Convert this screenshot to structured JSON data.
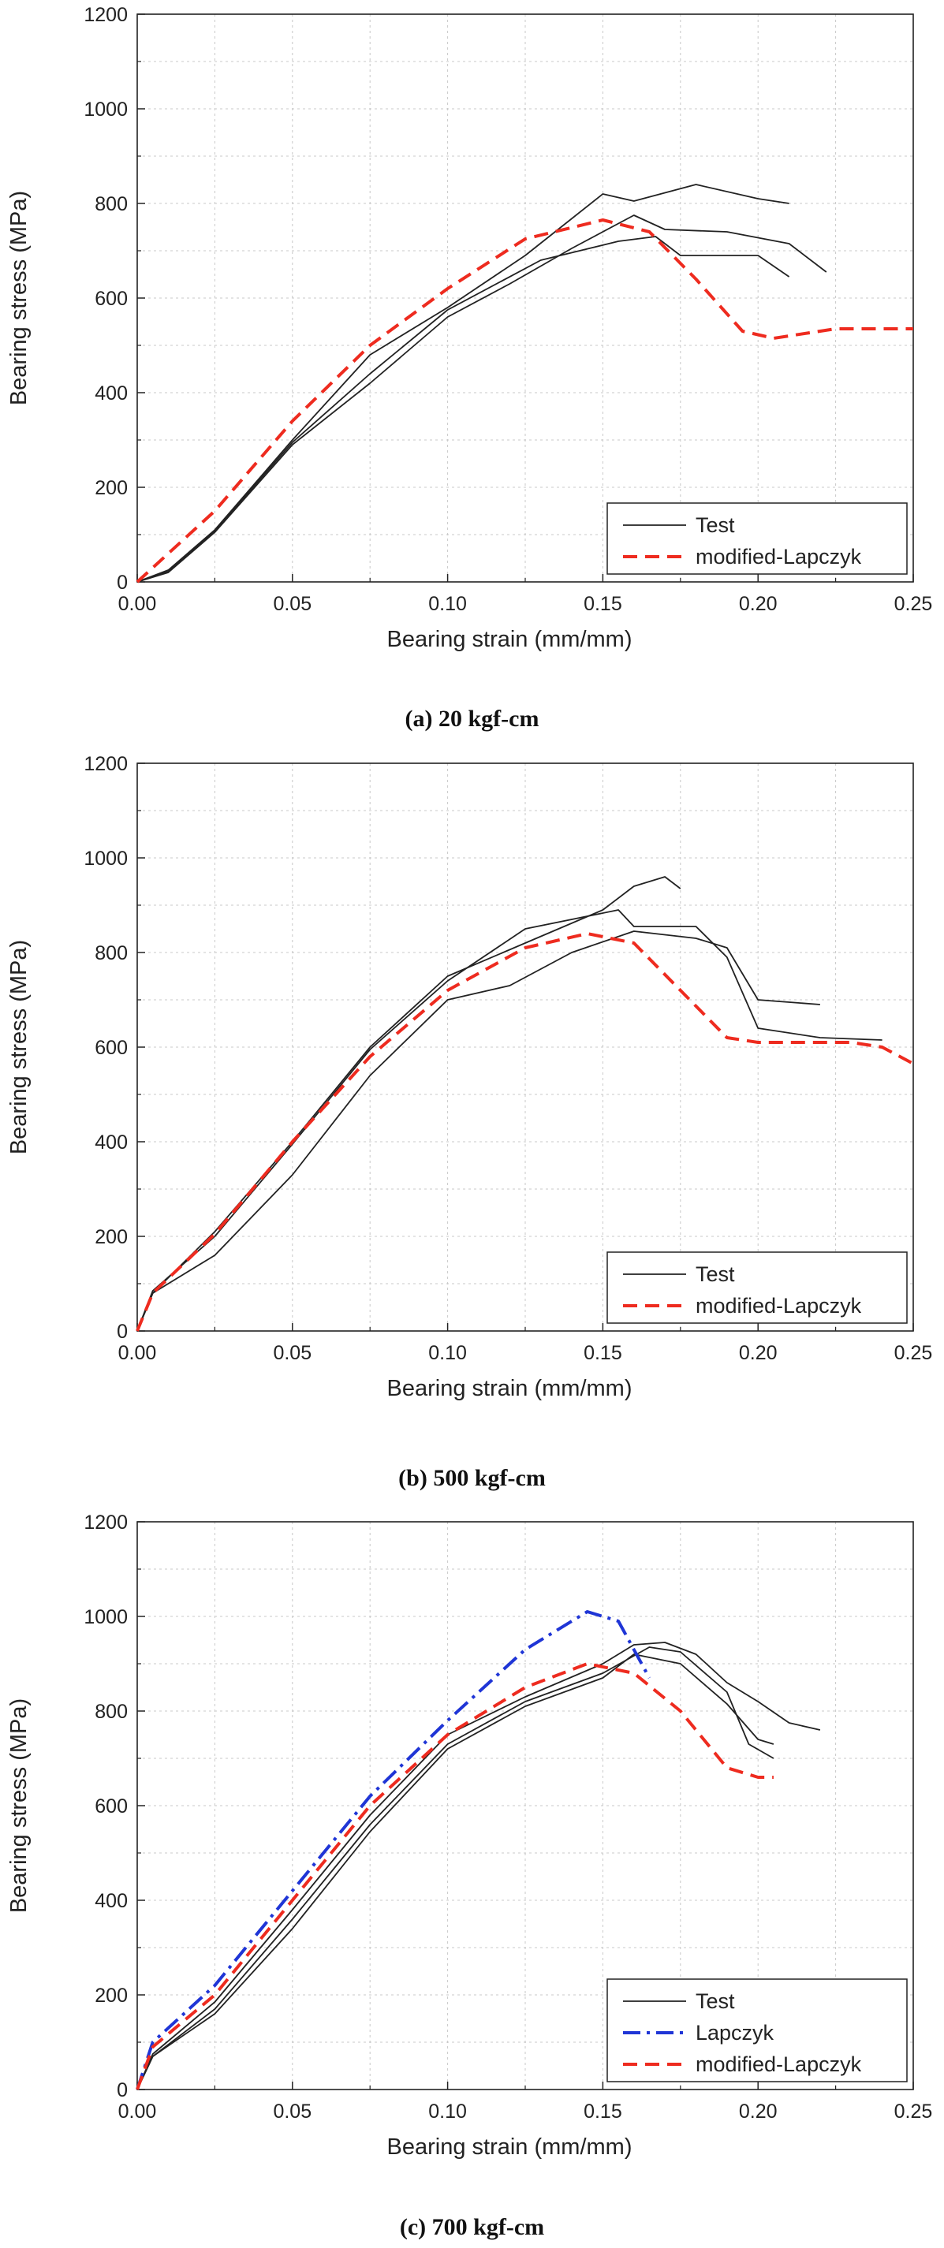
{
  "colors": {
    "test": "#222222",
    "lapczyk": "#1f35d6",
    "modified": "#ee2b1f",
    "grid": "#c8c8c8",
    "frame": "#222222"
  },
  "chart_data": [
    {
      "type": "line",
      "caption": "(a) 20 kgf-cm",
      "xlabel": "Bearing strain (mm/mm)",
      "ylabel": "Bearing stress (MPa)",
      "xlim": [
        0,
        0.25
      ],
      "ylim": [
        0,
        1200
      ],
      "x_ticks": [
        "0.00",
        "0.05",
        "0.10",
        "0.15",
        "0.20",
        "0.25"
      ],
      "y_ticks": [
        "0",
        "200",
        "400",
        "600",
        "800",
        "1000",
        "1200"
      ],
      "grid": true,
      "legend_position": "bottom-right",
      "legend": [
        "Test",
        "modified-Lapczyk"
      ],
      "series": [
        {
          "name": "Test",
          "style": "test",
          "points": [
            [
              0,
              0
            ],
            [
              0.01,
              25
            ],
            [
              0.025,
              110
            ],
            [
              0.05,
              300
            ],
            [
              0.075,
              480
            ],
            [
              0.1,
              580
            ],
            [
              0.125,
              690
            ],
            [
              0.15,
              820
            ],
            [
              0.16,
              805
            ],
            [
              0.18,
              840
            ],
            [
              0.2,
              810
            ],
            [
              0.21,
              800
            ]
          ]
        },
        {
          "name": "Test",
          "style": "test",
          "points": [
            [
              0,
              0
            ],
            [
              0.01,
              20
            ],
            [
              0.025,
              105
            ],
            [
              0.05,
              290
            ],
            [
              0.075,
              420
            ],
            [
              0.1,
              560
            ],
            [
              0.12,
              630
            ],
            [
              0.14,
              705
            ],
            [
              0.16,
              775
            ],
            [
              0.17,
              745
            ],
            [
              0.19,
              740
            ],
            [
              0.21,
              715
            ],
            [
              0.222,
              655
            ]
          ]
        },
        {
          "name": "Test",
          "style": "test",
          "points": [
            [
              0,
              0
            ],
            [
              0.01,
              22
            ],
            [
              0.025,
              108
            ],
            [
              0.05,
              295
            ],
            [
              0.075,
              440
            ],
            [
              0.1,
              575
            ],
            [
              0.13,
              680
            ],
            [
              0.155,
              720
            ],
            [
              0.167,
              730
            ],
            [
              0.175,
              690
            ],
            [
              0.2,
              690
            ],
            [
              0.21,
              645
            ]
          ]
        },
        {
          "name": "modified-Lapczyk",
          "style": "modified",
          "points": [
            [
              0,
              0
            ],
            [
              0.025,
              150
            ],
            [
              0.05,
              340
            ],
            [
              0.075,
              500
            ],
            [
              0.1,
              620
            ],
            [
              0.125,
              725
            ],
            [
              0.15,
              765
            ],
            [
              0.165,
              740
            ],
            [
              0.18,
              640
            ],
            [
              0.195,
              530
            ],
            [
              0.205,
              515
            ],
            [
              0.225,
              535
            ],
            [
              0.25,
              535
            ]
          ]
        }
      ]
    },
    {
      "type": "line",
      "caption": "(b) 500 kgf-cm",
      "xlabel": "Bearing strain (mm/mm)",
      "ylabel": "Bearing stress (MPa)",
      "xlim": [
        0,
        0.25
      ],
      "ylim": [
        0,
        1200
      ],
      "x_ticks": [
        "0.00",
        "0.05",
        "0.10",
        "0.15",
        "0.20",
        "0.25"
      ],
      "y_ticks": [
        "0",
        "200",
        "400",
        "600",
        "800",
        "1000",
        "1200"
      ],
      "grid": true,
      "legend_position": "bottom-right",
      "legend": [
        "Test",
        "modified-Lapczyk"
      ],
      "series": [
        {
          "name": "Test",
          "style": "test",
          "points": [
            [
              0,
              0
            ],
            [
              0.005,
              80
            ],
            [
              0.025,
              210
            ],
            [
              0.05,
              400
            ],
            [
              0.075,
              600
            ],
            [
              0.1,
              750
            ],
            [
              0.125,
              820
            ],
            [
              0.15,
              890
            ],
            [
              0.16,
              940
            ],
            [
              0.17,
              960
            ],
            [
              0.175,
              935
            ]
          ]
        },
        {
          "name": "Test",
          "style": "test",
          "points": [
            [
              0,
              0
            ],
            [
              0.005,
              85
            ],
            [
              0.025,
              200
            ],
            [
              0.05,
              395
            ],
            [
              0.075,
              595
            ],
            [
              0.1,
              740
            ],
            [
              0.125,
              850
            ],
            [
              0.155,
              890
            ],
            [
              0.16,
              855
            ],
            [
              0.18,
              855
            ],
            [
              0.19,
              790
            ],
            [
              0.2,
              640
            ],
            [
              0.22,
              620
            ],
            [
              0.24,
              615
            ]
          ]
        },
        {
          "name": "Test",
          "style": "test",
          "points": [
            [
              0,
              0
            ],
            [
              0.005,
              80
            ],
            [
              0.025,
              160
            ],
            [
              0.05,
              330
            ],
            [
              0.075,
              540
            ],
            [
              0.1,
              700
            ],
            [
              0.12,
              730
            ],
            [
              0.14,
              800
            ],
            [
              0.16,
              845
            ],
            [
              0.18,
              830
            ],
            [
              0.19,
              810
            ],
            [
              0.2,
              700
            ],
            [
              0.22,
              690
            ]
          ]
        },
        {
          "name": "modified-Lapczyk",
          "style": "modified",
          "points": [
            [
              0,
              0
            ],
            [
              0.005,
              80
            ],
            [
              0.025,
              205
            ],
            [
              0.05,
              400
            ],
            [
              0.075,
              580
            ],
            [
              0.1,
              720
            ],
            [
              0.125,
              810
            ],
            [
              0.145,
              840
            ],
            [
              0.16,
              820
            ],
            [
              0.175,
              720
            ],
            [
              0.19,
              620
            ],
            [
              0.2,
              610
            ],
            [
              0.23,
              610
            ],
            [
              0.24,
              600
            ],
            [
              0.25,
              565
            ]
          ]
        }
      ]
    },
    {
      "type": "line",
      "caption": "(c) 700 kgf-cm",
      "xlabel": "Bearing strain (mm/mm)",
      "ylabel": "Bearing stress (MPa)",
      "xlim": [
        0,
        0.25
      ],
      "ylim": [
        0,
        1200
      ],
      "x_ticks": [
        "0.00",
        "0.05",
        "0.10",
        "0.15",
        "0.20",
        "0.25"
      ],
      "y_ticks": [
        "0",
        "200",
        "400",
        "600",
        "800",
        "1000",
        "1200"
      ],
      "grid": true,
      "legend_position": "bottom-right",
      "legend": [
        "Test",
        "Lapczyk",
        "modified-Lapczyk"
      ],
      "series": [
        {
          "name": "Test",
          "style": "test",
          "points": [
            [
              0,
              0
            ],
            [
              0.005,
              70
            ],
            [
              0.025,
              170
            ],
            [
              0.05,
              360
            ],
            [
              0.075,
              560
            ],
            [
              0.1,
              730
            ],
            [
              0.125,
              820
            ],
            [
              0.15,
              880
            ],
            [
              0.165,
              935
            ],
            [
              0.175,
              925
            ],
            [
              0.19,
              840
            ],
            [
              0.197,
              730
            ],
            [
              0.205,
              700
            ]
          ]
        },
        {
          "name": "Test",
          "style": "test",
          "points": [
            [
              0,
              0
            ],
            [
              0.005,
              75
            ],
            [
              0.025,
              185
            ],
            [
              0.05,
              380
            ],
            [
              0.075,
              580
            ],
            [
              0.1,
              750
            ],
            [
              0.125,
              830
            ],
            [
              0.15,
              900
            ],
            [
              0.16,
              940
            ],
            [
              0.17,
              945
            ],
            [
              0.18,
              920
            ],
            [
              0.19,
              860
            ],
            [
              0.2,
              820
            ],
            [
              0.21,
              775
            ],
            [
              0.22,
              760
            ]
          ]
        },
        {
          "name": "Test",
          "style": "test",
          "points": [
            [
              0,
              0
            ],
            [
              0.005,
              70
            ],
            [
              0.025,
              160
            ],
            [
              0.05,
              340
            ],
            [
              0.075,
              545
            ],
            [
              0.1,
              720
            ],
            [
              0.125,
              810
            ],
            [
              0.15,
              870
            ],
            [
              0.16,
              920
            ],
            [
              0.175,
              900
            ],
            [
              0.19,
              815
            ],
            [
              0.2,
              740
            ],
            [
              0.205,
              730
            ]
          ]
        },
        {
          "name": "Lapczyk",
          "style": "lapczyk",
          "points": [
            [
              0,
              0
            ],
            [
              0.005,
              100
            ],
            [
              0.025,
              220
            ],
            [
              0.05,
              420
            ],
            [
              0.075,
              620
            ],
            [
              0.1,
              780
            ],
            [
              0.125,
              930
            ],
            [
              0.145,
              1010
            ],
            [
              0.155,
              990
            ],
            [
              0.165,
              870
            ]
          ]
        },
        {
          "name": "modified-Lapczyk",
          "style": "modified",
          "points": [
            [
              0,
              0
            ],
            [
              0.005,
              90
            ],
            [
              0.025,
              200
            ],
            [
              0.05,
              400
            ],
            [
              0.075,
              600
            ],
            [
              0.1,
              750
            ],
            [
              0.125,
              850
            ],
            [
              0.145,
              900
            ],
            [
              0.16,
              880
            ],
            [
              0.175,
              800
            ],
            [
              0.19,
              680
            ],
            [
              0.2,
              660
            ],
            [
              0.205,
              660
            ]
          ]
        }
      ]
    }
  ]
}
